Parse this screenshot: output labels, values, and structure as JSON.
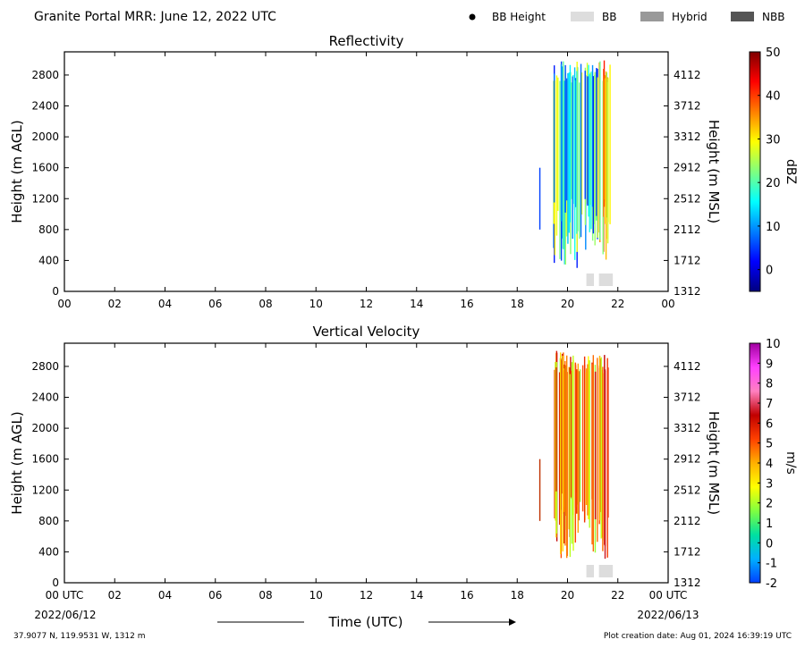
{
  "header": {
    "title": "Granite Portal MRR:  June 12, 2022 UTC",
    "legend": [
      {
        "label": "BB Height",
        "kind": "dot",
        "color": "#000000"
      },
      {
        "label": "BB",
        "kind": "patch",
        "color": "#dddddd"
      },
      {
        "label": "Hybrid",
        "kind": "patch",
        "color": "#999999"
      },
      {
        "label": "NBB",
        "kind": "patch",
        "color": "#555555"
      }
    ]
  },
  "footer": {
    "time_label": "Time (UTC)",
    "start_date": "2022/06/12",
    "end_date": "2022/06/13",
    "location": "37.9077 N, 119.9531 W, 1312 m",
    "creation": "Plot creation date: Aug 01, 2024 16:39:19 UTC"
  },
  "chart_data": [
    {
      "type": "heatmap",
      "title": "Reflectivity",
      "ylabel": "Height (m AGL)",
      "ylabel_right": "Height (m MSL)",
      "xlim": [
        0,
        24
      ],
      "ylim": [
        0,
        3100
      ],
      "x_ticks": [
        "00",
        "02",
        "04",
        "06",
        "08",
        "10",
        "12",
        "14",
        "16",
        "18",
        "20",
        "22",
        "00"
      ],
      "y_ticks": [
        0,
        400,
        800,
        1200,
        1600,
        2000,
        2400,
        2800
      ],
      "y_ticks_right": [
        1312,
        1712,
        2112,
        2512,
        2912,
        3312,
        3712,
        4112
      ],
      "colorbar": {
        "label": "dBZ",
        "range": [
          -5,
          50
        ],
        "ticks": [
          0,
          10,
          20,
          30,
          40,
          50
        ],
        "colors": [
          "#00007f",
          "#0000ff",
          "#007fff",
          "#00ffff",
          "#7fff7f",
          "#ffff00",
          "#ff7f00",
          "#ff0000",
          "#7f0000"
        ]
      },
      "precip_period": {
        "start_hour": 18.9,
        "end_hour": 21.75,
        "top_m": 3000,
        "bottom_m": 300
      },
      "bright_band_periods": [
        [
          20.75,
          21.05
        ],
        [
          21.25,
          21.8
        ]
      ]
    },
    {
      "type": "heatmap",
      "title": "Vertical Velocity",
      "ylabel": "Height (m AGL)",
      "ylabel_right": "Height (m MSL)",
      "xlim": [
        0,
        24
      ],
      "ylim": [
        0,
        3100
      ],
      "x_ticks": [
        "00 UTC",
        "02",
        "04",
        "06",
        "08",
        "10",
        "12",
        "14",
        "16",
        "18",
        "20",
        "22",
        "00 UTC"
      ],
      "y_ticks": [
        0,
        400,
        800,
        1200,
        1600,
        2000,
        2400,
        2800
      ],
      "y_ticks_right": [
        1312,
        1712,
        2112,
        2512,
        2912,
        3312,
        3712,
        4112
      ],
      "colorbar": {
        "label": "m/s",
        "range": [
          -2,
          10
        ],
        "ticks": [
          -2,
          -1,
          0,
          1,
          2,
          3,
          4,
          5,
          6,
          7,
          8,
          9,
          10
        ],
        "colors": [
          "#0040ff",
          "#00b0ff",
          "#00e0a0",
          "#80ff40",
          "#ffff00",
          "#ffb000",
          "#ff4000",
          "#c00000",
          "#ff80c0",
          "#ff40ff",
          "#a000a0"
        ]
      },
      "precip_period": {
        "start_hour": 18.9,
        "end_hour": 21.75,
        "top_m": 3000,
        "bottom_m": 300
      },
      "bright_band_periods": [
        [
          20.75,
          21.05
        ],
        [
          21.25,
          21.8
        ]
      ]
    }
  ]
}
